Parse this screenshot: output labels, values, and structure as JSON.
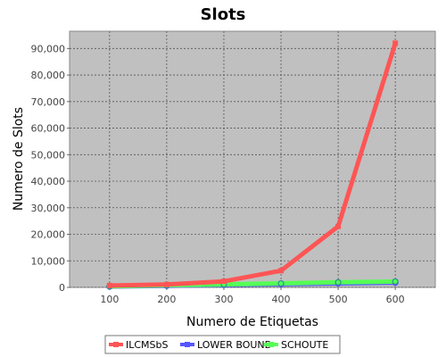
{
  "chart_data": {
    "type": "line",
    "title": "Slots",
    "xlabel": "Numero de Etiquetas",
    "ylabel": "Numero de Slots",
    "x": [
      100,
      200,
      300,
      400,
      500,
      600
    ],
    "x_ticks": [
      "100",
      "200",
      "300",
      "400",
      "500",
      "600"
    ],
    "xlim": [
      30,
      670
    ],
    "ylim": [
      0,
      96500
    ],
    "y_ticks": [
      0,
      10000,
      20000,
      30000,
      40000,
      50000,
      60000,
      70000,
      80000,
      90000
    ],
    "y_tick_labels": [
      "0",
      "10,000",
      "20,000",
      "30,000",
      "40,000",
      "50,000",
      "60,000",
      "70,000",
      "80,000",
      "90,000"
    ],
    "grid": true,
    "legend_position": "bottom",
    "plot_background": "#c0c0c0",
    "series": [
      {
        "name": "ILCMSbS",
        "color": "#ff5555",
        "values": [
          700,
          1100,
          2300,
          6300,
          23000,
          92000
        ]
      },
      {
        "name": "LOWER BOUND",
        "color": "#5555ff",
        "values": [
          300,
          600,
          900,
          1200,
          1500,
          1800
        ]
      },
      {
        "name": "SCHOUTE",
        "color": "#55ff55",
        "values": [
          400,
          800,
          1100,
          1500,
          1900,
          2200
        ]
      }
    ]
  }
}
